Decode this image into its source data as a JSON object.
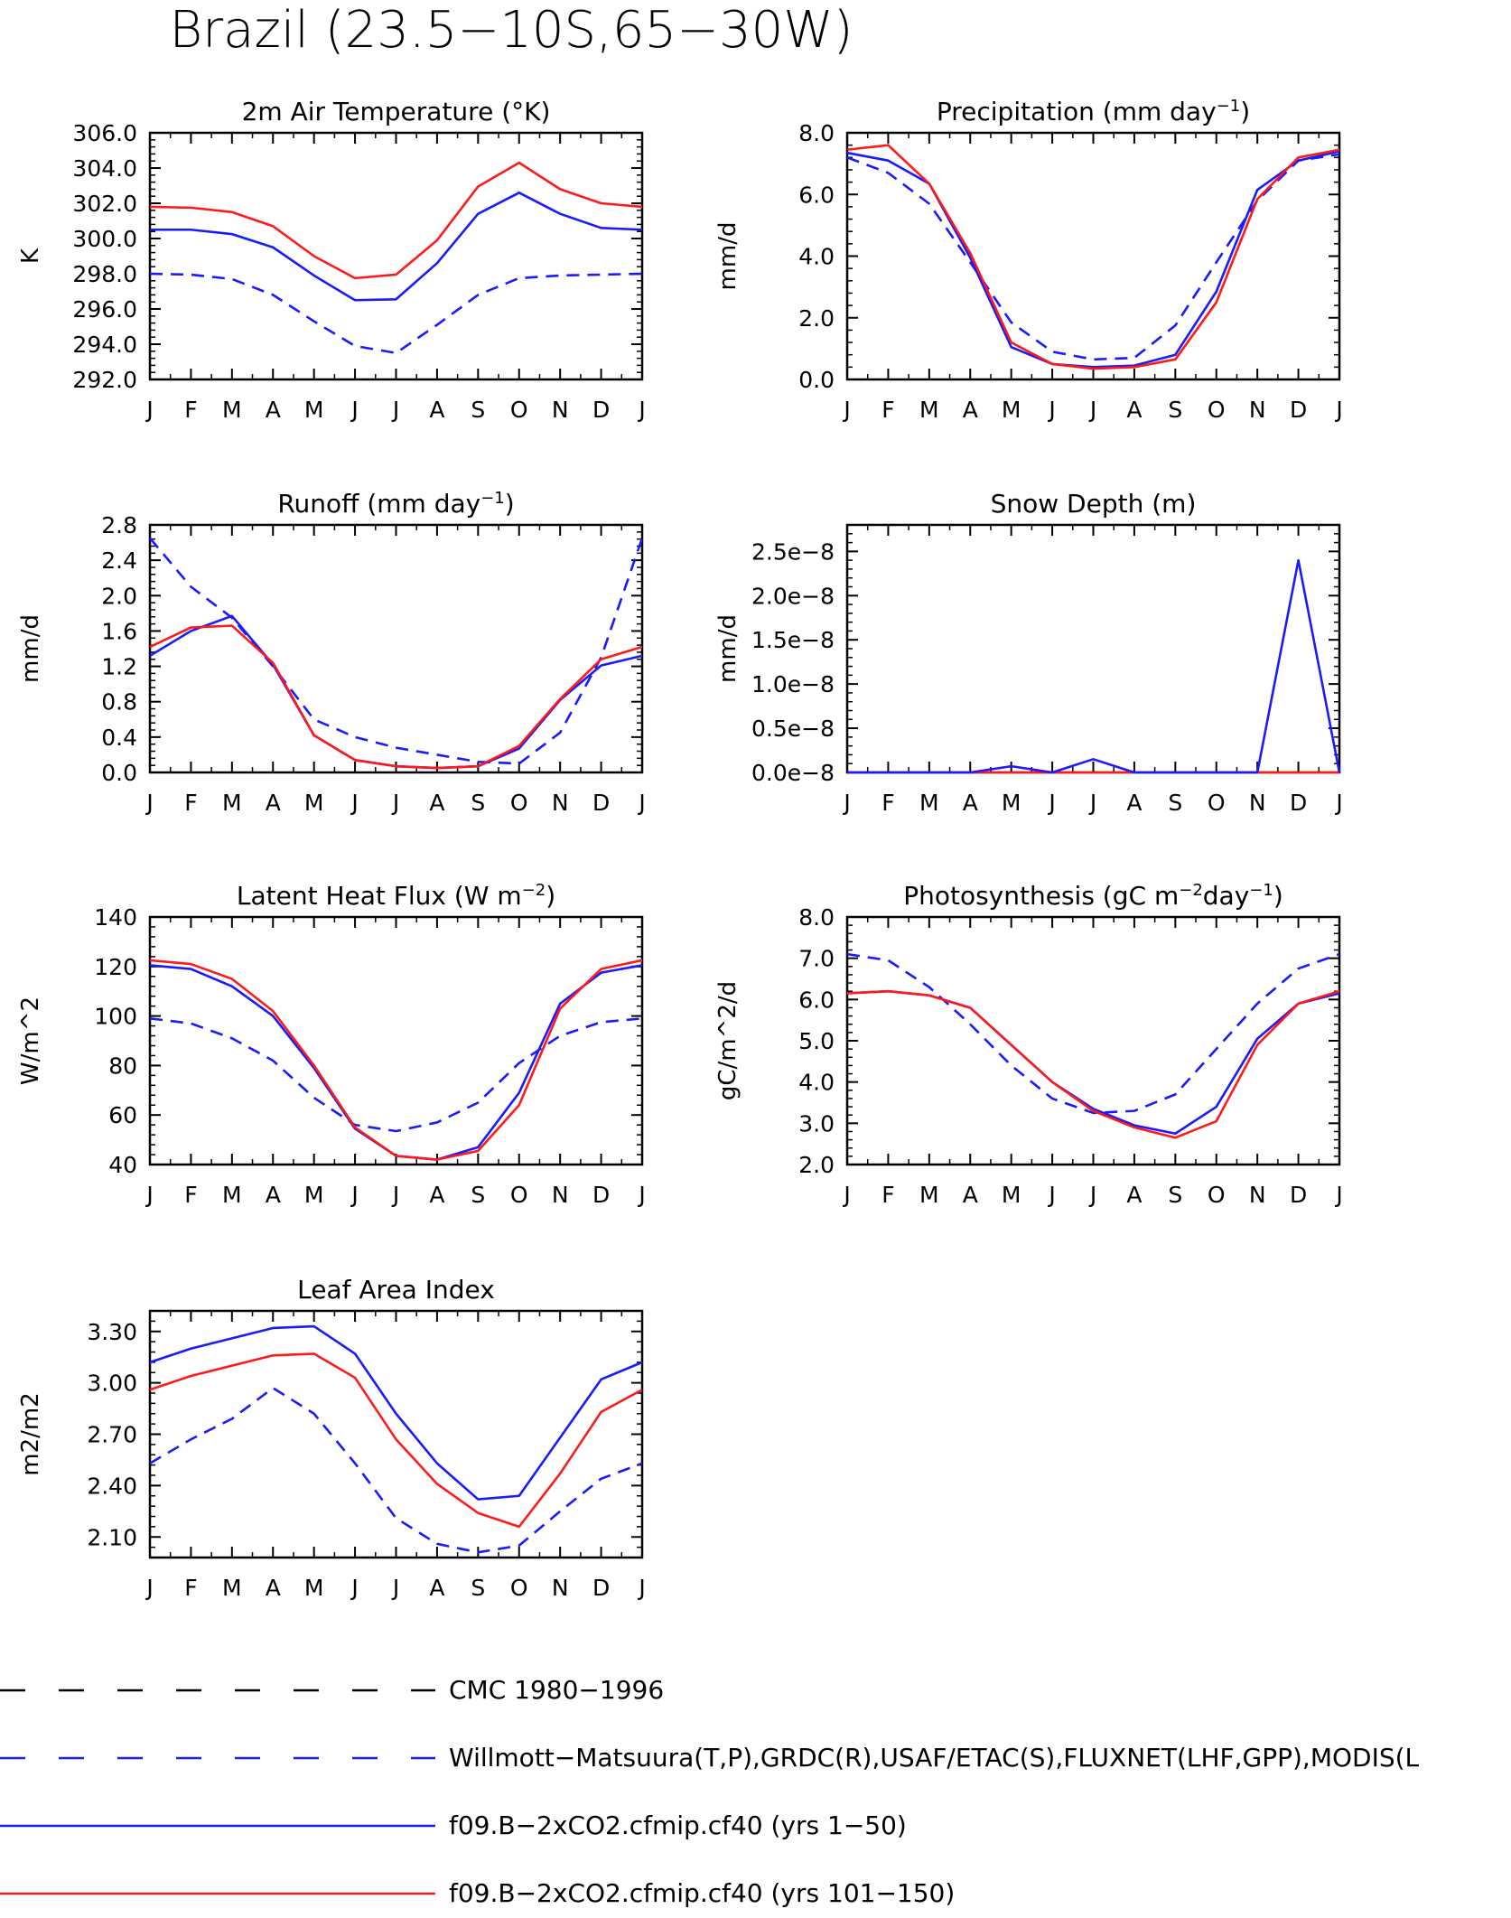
{
  "figure": {
    "title": "Brazil (23.5−10S,65−30W)",
    "months": [
      "J",
      "F",
      "M",
      "A",
      "M",
      "J",
      "J",
      "A",
      "S",
      "O",
      "N",
      "D",
      "J"
    ]
  },
  "colors": {
    "cmc": "#000000",
    "obs": "#1a1aff",
    "yrs1_50": "#1a1aff",
    "yrs101_150": "#ff1a1a"
  },
  "legend": [
    {
      "key": "cmc",
      "label": "CMC 1980−1996",
      "style": "dashed",
      "color": "#000000"
    },
    {
      "key": "obs",
      "label": "Willmott−Matsuura(T,P),GRDC(R),USAF/ETAC(S),FLUXNET(LHF,GPP),MODIS(L",
      "style": "dashed",
      "color": "#1a1aff"
    },
    {
      "key": "yrs1_50",
      "label": "f09.B−2xCO2.cfmip.cf40 (yrs 1−50)",
      "style": "solid",
      "color": "#1a1aff"
    },
    {
      "key": "yrs101_150",
      "label": "f09.B−2xCO2.cfmip.cf40 (yrs 101−150)",
      "style": "solid",
      "color": "#ff1a1a"
    }
  ],
  "chart_data": [
    {
      "id": "temp",
      "type": "line",
      "title": "2m Air Temperature (°K)",
      "ylabel": "K",
      "ylim": [
        292.0,
        306.0
      ],
      "yticks": [
        292,
        294,
        296,
        298,
        300,
        302,
        304,
        306
      ],
      "ytick_labels": [
        "292.0",
        "294.0",
        "296.0",
        "298.0",
        "300.0",
        "302.0",
        "304.0",
        "306.0"
      ],
      "x": [
        "J",
        "F",
        "M",
        "A",
        "M",
        "J",
        "J",
        "A",
        "S",
        "O",
        "N",
        "D",
        "J"
      ],
      "series": [
        {
          "key": "obs",
          "style": "dashed",
          "values": [
            298.0,
            297.95,
            297.7,
            296.8,
            295.3,
            293.9,
            293.5,
            295.1,
            296.8,
            297.75,
            297.9,
            297.95,
            298.0
          ]
        },
        {
          "key": "yrs1_50",
          "style": "solid",
          "values": [
            300.5,
            300.5,
            300.25,
            299.5,
            297.9,
            296.5,
            296.55,
            298.6,
            301.4,
            302.6,
            301.4,
            300.6,
            300.5
          ]
        },
        {
          "key": "yrs101_150",
          "style": "solid",
          "values": [
            301.8,
            301.75,
            301.5,
            300.7,
            299.0,
            297.75,
            297.95,
            299.9,
            302.95,
            304.3,
            302.8,
            302.0,
            301.8
          ]
        }
      ]
    },
    {
      "id": "precip",
      "type": "line",
      "title": "Precipitation (mm day",
      "title_sup": "−1",
      "title_end": ")",
      "ylabel": "mm/d",
      "ylim": [
        0.0,
        8.0
      ],
      "yticks": [
        0,
        2,
        4,
        6,
        8
      ],
      "ytick_labels": [
        "0.0",
        "2.0",
        "4.0",
        "6.0",
        "8.0"
      ],
      "x": [
        "J",
        "F",
        "M",
        "A",
        "M",
        "J",
        "J",
        "A",
        "S",
        "O",
        "N",
        "D",
        "J"
      ],
      "series": [
        {
          "key": "obs",
          "style": "dashed",
          "values": [
            7.2,
            6.7,
            5.7,
            3.8,
            1.85,
            0.9,
            0.65,
            0.7,
            1.75,
            3.8,
            5.8,
            7.1,
            7.3
          ]
        },
        {
          "key": "yrs1_50",
          "style": "solid",
          "values": [
            7.35,
            7.1,
            6.35,
            3.95,
            1.05,
            0.5,
            0.4,
            0.45,
            0.8,
            2.85,
            6.15,
            7.1,
            7.4
          ]
        },
        {
          "key": "yrs101_150",
          "style": "solid",
          "values": [
            7.45,
            7.6,
            6.35,
            4.1,
            1.2,
            0.5,
            0.35,
            0.4,
            0.65,
            2.5,
            5.85,
            7.2,
            7.45
          ]
        }
      ]
    },
    {
      "id": "runoff",
      "type": "line",
      "title": "Runoff (mm day",
      "title_sup": "−1",
      "title_end": ")",
      "ylabel": "mm/d",
      "ylim": [
        0.0,
        2.8
      ],
      "yticks": [
        0,
        0.4,
        0.8,
        1.2,
        1.6,
        2.0,
        2.4,
        2.8
      ],
      "ytick_labels": [
        "0.0",
        "0.4",
        "0.8",
        "1.2",
        "1.6",
        "2.0",
        "2.4",
        "2.8"
      ],
      "x": [
        "J",
        "F",
        "M",
        "A",
        "M",
        "J",
        "J",
        "A",
        "S",
        "O",
        "N",
        "D",
        "J"
      ],
      "series": [
        {
          "key": "obs",
          "style": "dashed",
          "values": [
            2.65,
            2.1,
            1.75,
            1.2,
            0.6,
            0.4,
            0.28,
            0.2,
            0.12,
            0.1,
            0.45,
            1.3,
            2.65
          ]
        },
        {
          "key": "yrs1_50",
          "style": "solid",
          "values": [
            1.32,
            1.6,
            1.77,
            1.22,
            0.42,
            0.14,
            0.07,
            0.05,
            0.07,
            0.27,
            0.82,
            1.21,
            1.32
          ]
        },
        {
          "key": "yrs101_150",
          "style": "solid",
          "values": [
            1.42,
            1.64,
            1.66,
            1.24,
            0.42,
            0.14,
            0.07,
            0.05,
            0.07,
            0.3,
            0.83,
            1.28,
            1.42
          ]
        }
      ]
    },
    {
      "id": "snow",
      "type": "line",
      "title": "Snow Depth (m)",
      "ylabel": "mm/d",
      "ylim": [
        0,
        2.8e-08
      ],
      "yticks": [
        0,
        5e-09,
        1e-08,
        1.5e-08,
        2e-08,
        2.5e-08
      ],
      "ytick_labels": [
        "0.0e−8",
        "0.5e−8",
        "1.0e−8",
        "1.5e−8",
        "2.0e−8",
        "2.5e−8"
      ],
      "x": [
        "J",
        "F",
        "M",
        "A",
        "M",
        "J",
        "J",
        "A",
        "S",
        "O",
        "N",
        "D",
        "J"
      ],
      "series": [
        {
          "key": "yrs101_150",
          "style": "solid",
          "values": [
            0,
            0,
            0,
            0,
            0,
            0,
            0,
            0,
            0,
            0,
            0,
            0,
            0
          ]
        },
        {
          "key": "yrs1_50",
          "style": "solid",
          "values": [
            0,
            0,
            0,
            0,
            7e-10,
            0,
            1.5e-09,
            0,
            0,
            0,
            0,
            2.4e-08,
            0
          ]
        }
      ]
    },
    {
      "id": "lhf",
      "type": "line",
      "title": "Latent Heat Flux (W m",
      "title_sup": "−2",
      "title_end": ")",
      "ylabel": "W/m^2",
      "ylim": [
        40,
        140
      ],
      "yticks": [
        40,
        60,
        80,
        100,
        120,
        140
      ],
      "ytick_labels": [
        "40",
        "60",
        "80",
        "100",
        "120",
        "140"
      ],
      "x": [
        "J",
        "F",
        "M",
        "A",
        "M",
        "J",
        "J",
        "A",
        "S",
        "O",
        "N",
        "D",
        "J"
      ],
      "series": [
        {
          "key": "obs",
          "style": "dashed",
          "values": [
            99,
            97,
            91,
            82,
            67,
            56,
            53.5,
            57,
            65,
            81,
            92,
            97.5,
            99
          ]
        },
        {
          "key": "yrs1_50",
          "style": "solid",
          "values": [
            120.5,
            119,
            112,
            100,
            79,
            54.5,
            43.5,
            42,
            47,
            69,
            105,
            117.5,
            120.5
          ]
        },
        {
          "key": "yrs101_150",
          "style": "solid",
          "values": [
            122.5,
            121,
            115,
            102,
            80,
            55,
            43.5,
            42,
            45.5,
            64,
            103,
            119,
            122.5
          ]
        }
      ]
    },
    {
      "id": "gpp",
      "type": "line",
      "title": "Photosynthesis (gC m",
      "title_sup": "−2",
      "title_mid": "day",
      "title_sup2": "−1",
      "title_end": ")",
      "ylabel": "gC/m^2/d",
      "ylim": [
        2.0,
        8.0
      ],
      "yticks": [
        2,
        3,
        4,
        5,
        6,
        7,
        8
      ],
      "ytick_labels": [
        "2.0",
        "3.0",
        "4.0",
        "5.0",
        "6.0",
        "7.0",
        "8.0"
      ],
      "x": [
        "J",
        "F",
        "M",
        "A",
        "M",
        "J",
        "J",
        "A",
        "S",
        "O",
        "N",
        "D",
        "J"
      ],
      "series": [
        {
          "key": "obs",
          "style": "dashed",
          "values": [
            7.1,
            6.95,
            6.3,
            5.4,
            4.4,
            3.6,
            3.25,
            3.3,
            3.7,
            4.8,
            5.9,
            6.75,
            7.1
          ]
        },
        {
          "key": "yrs1_50",
          "style": "solid",
          "values": [
            6.15,
            6.2,
            6.1,
            5.8,
            4.9,
            4.0,
            3.35,
            2.95,
            2.75,
            3.4,
            5.05,
            5.9,
            6.15
          ]
        },
        {
          "key": "yrs101_150",
          "style": "solid",
          "values": [
            6.15,
            6.2,
            6.1,
            5.8,
            4.9,
            4.0,
            3.3,
            2.9,
            2.65,
            3.05,
            4.9,
            5.9,
            6.2
          ]
        }
      ]
    },
    {
      "id": "lai",
      "type": "line",
      "title": "Leaf Area Index",
      "ylabel": "m2/m2",
      "ylim": [
        1.98,
        3.42
      ],
      "yticks": [
        2.1,
        2.4,
        2.7,
        3.0,
        3.3
      ],
      "ytick_labels": [
        "2.10",
        "2.40",
        "2.70",
        "3.00",
        "3.30"
      ],
      "x": [
        "J",
        "F",
        "M",
        "A",
        "M",
        "J",
        "J",
        "A",
        "S",
        "O",
        "N",
        "D",
        "J"
      ],
      "series": [
        {
          "key": "obs",
          "style": "dashed",
          "values": [
            2.53,
            2.67,
            2.79,
            2.97,
            2.82,
            2.53,
            2.21,
            2.06,
            2.01,
            2.05,
            2.25,
            2.44,
            2.53
          ]
        },
        {
          "key": "yrs1_50",
          "style": "solid",
          "values": [
            3.12,
            3.2,
            3.26,
            3.32,
            3.33,
            3.17,
            2.82,
            2.53,
            2.32,
            2.34,
            2.68,
            3.02,
            3.12
          ]
        },
        {
          "key": "yrs101_150",
          "style": "solid",
          "values": [
            2.96,
            3.04,
            3.1,
            3.16,
            3.17,
            3.03,
            2.67,
            2.41,
            2.24,
            2.16,
            2.47,
            2.83,
            2.96
          ]
        }
      ]
    }
  ]
}
